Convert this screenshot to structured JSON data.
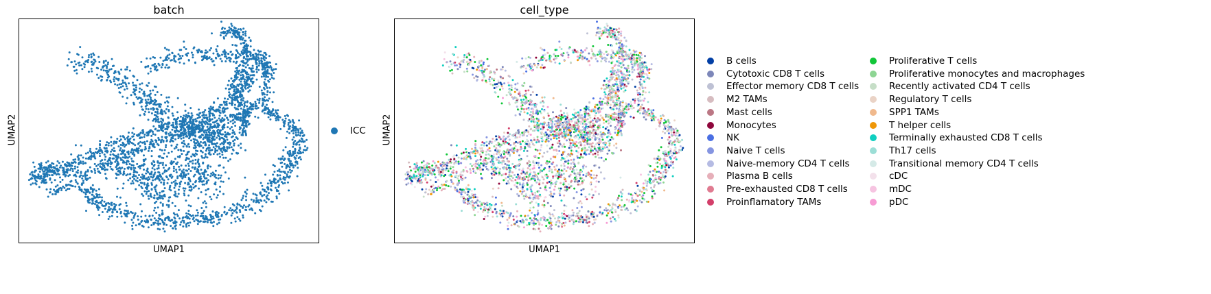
{
  "chart_data": [
    {
      "type": "scatter",
      "title": "batch",
      "xlabel": "UMAP1",
      "ylabel": "UMAP2",
      "legend": {
        "placement": "right",
        "entries": [
          {
            "name": "ICC",
            "color": "#1f77b4"
          }
        ]
      },
      "grid": false
    },
    {
      "type": "scatter",
      "title": "cell_type",
      "xlabel": "UMAP1",
      "ylabel": "UMAP2",
      "grid": false,
      "legend": {
        "placement": "right",
        "columns": 2,
        "entries": [
          {
            "name": "B cells",
            "color": "#023fa5"
          },
          {
            "name": "Cytotoxic CD8 T cells",
            "color": "#7d87b9"
          },
          {
            "name": "Effector memory CD8 T cells",
            "color": "#bec1d4"
          },
          {
            "name": "M2 TAMs",
            "color": "#d6bcc0"
          },
          {
            "name": "Mast cells",
            "color": "#bb7784"
          },
          {
            "name": "Monocytes",
            "color": "#8e063b"
          },
          {
            "name": "NK",
            "color": "#4a6fe3"
          },
          {
            "name": "Naive T cells",
            "color": "#8595e1"
          },
          {
            "name": "Naive-memory CD4 T cells",
            "color": "#b5bbe3"
          },
          {
            "name": "Plasma B cells",
            "color": "#e6afb9"
          },
          {
            "name": "Pre-exhausted CD8 T cells",
            "color": "#e07b91"
          },
          {
            "name": "Proinflamatory TAMs",
            "color": "#d33f6a"
          },
          {
            "name": "Proliferative T cells",
            "color": "#11c638"
          },
          {
            "name": "Proliferative monocytes and macrophages",
            "color": "#8dd593"
          },
          {
            "name": "Recently activated CD4 T cells",
            "color": "#c6dec7"
          },
          {
            "name": "Regulatory T cells",
            "color": "#ead3c6"
          },
          {
            "name": "SPP1 TAMs",
            "color": "#f0b98d"
          },
          {
            "name": "T helper cells",
            "color": "#ef9708"
          },
          {
            "name": "Terminally exhausted CD8 T cells",
            "color": "#0fcfc0"
          },
          {
            "name": "Th17 cells",
            "color": "#9cded6"
          },
          {
            "name": "Transitional memory CD4 T cells",
            "color": "#d5eae7"
          },
          {
            "name": "cDC",
            "color": "#f3e1eb"
          },
          {
            "name": "mDC",
            "color": "#f6c4e1"
          },
          {
            "name": "pDC",
            "color": "#f79cd4"
          }
        ]
      }
    }
  ]
}
